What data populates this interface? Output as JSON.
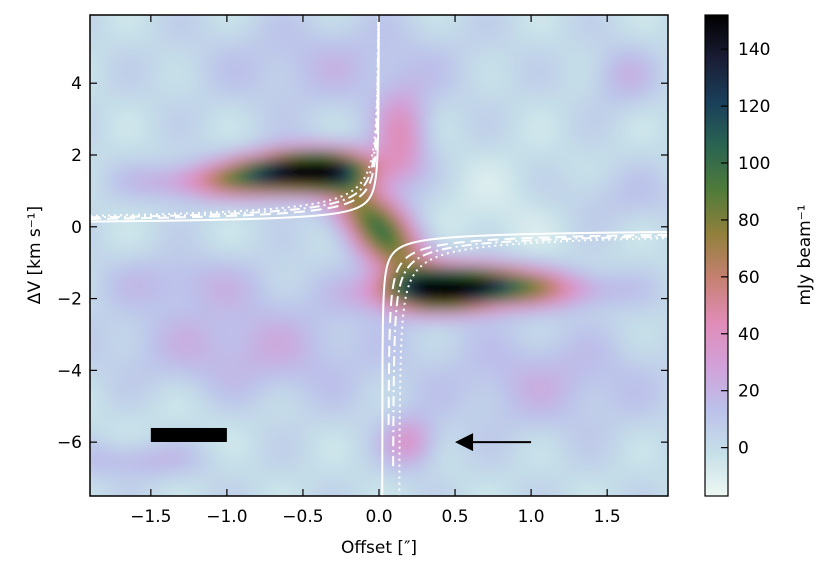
{
  "chart_data": {
    "type": "heatmap",
    "title": "",
    "xlabel": "Offset [″]",
    "ylabel": "ΔV [km s⁻¹]",
    "xlim": [
      -1.9,
      1.9
    ],
    "ylim": [
      -7.5,
      5.9
    ],
    "xticks": [
      -1.5,
      -1.0,
      -0.5,
      0.0,
      0.5,
      1.0,
      1.5
    ],
    "xtick_labels": [
      "−1.5",
      "−1.0",
      "−0.5",
      "0.0",
      "0.5",
      "1.0",
      "1.5"
    ],
    "yticks": [
      -6,
      -4,
      -2,
      0,
      2,
      4
    ],
    "ytick_labels": [
      "−6",
      "−4",
      "−2",
      "0",
      "2",
      "4"
    ],
    "grid": false,
    "colormap": "cubehelix_r",
    "colorbar": {
      "label": "mJy beam⁻¹",
      "range": [
        -17,
        152
      ],
      "ticks": [
        0,
        20,
        40,
        60,
        80,
        100,
        120,
        140
      ],
      "tick_labels": [
        "0",
        "20",
        "40",
        "60",
        "80",
        "100",
        "120",
        "140"
      ],
      "colors": [
        "#eef8f3",
        "#c5dfe8",
        "#bcc0ea",
        "#d2a0d8",
        "#e08cb6",
        "#c58070",
        "#91803c",
        "#4f7b3a",
        "#2a6452",
        "#1a3f5a",
        "#1a1d35",
        "#000000"
      ]
    },
    "emission_peaks": [
      {
        "x": -0.45,
        "y": 1.55,
        "value": 150
      },
      {
        "x": 0.45,
        "y": -1.75,
        "value": 150
      }
    ],
    "curves": [
      {
        "style": "solid",
        "color": "#ffffff",
        "A": 0.2,
        "x0": 0.02
      },
      {
        "style": "dashed",
        "color": "#ffffff",
        "A": 0.3,
        "x0": 0.06
      },
      {
        "style": "dashdot",
        "color": "#ffffff",
        "A": 0.36,
        "x0": 0.09
      },
      {
        "style": "dotted",
        "color": "#ffffff",
        "A": 0.42,
        "x0": 0.13
      }
    ],
    "annotations": [
      {
        "type": "scale-bar",
        "x0": -1.5,
        "x1": -1.0,
        "y": -5.8,
        "color": "#000000"
      },
      {
        "type": "arrow",
        "from": [
          1.0,
          -6.0
        ],
        "to": [
          0.5,
          -6.0
        ],
        "color": "#000000"
      }
    ]
  }
}
